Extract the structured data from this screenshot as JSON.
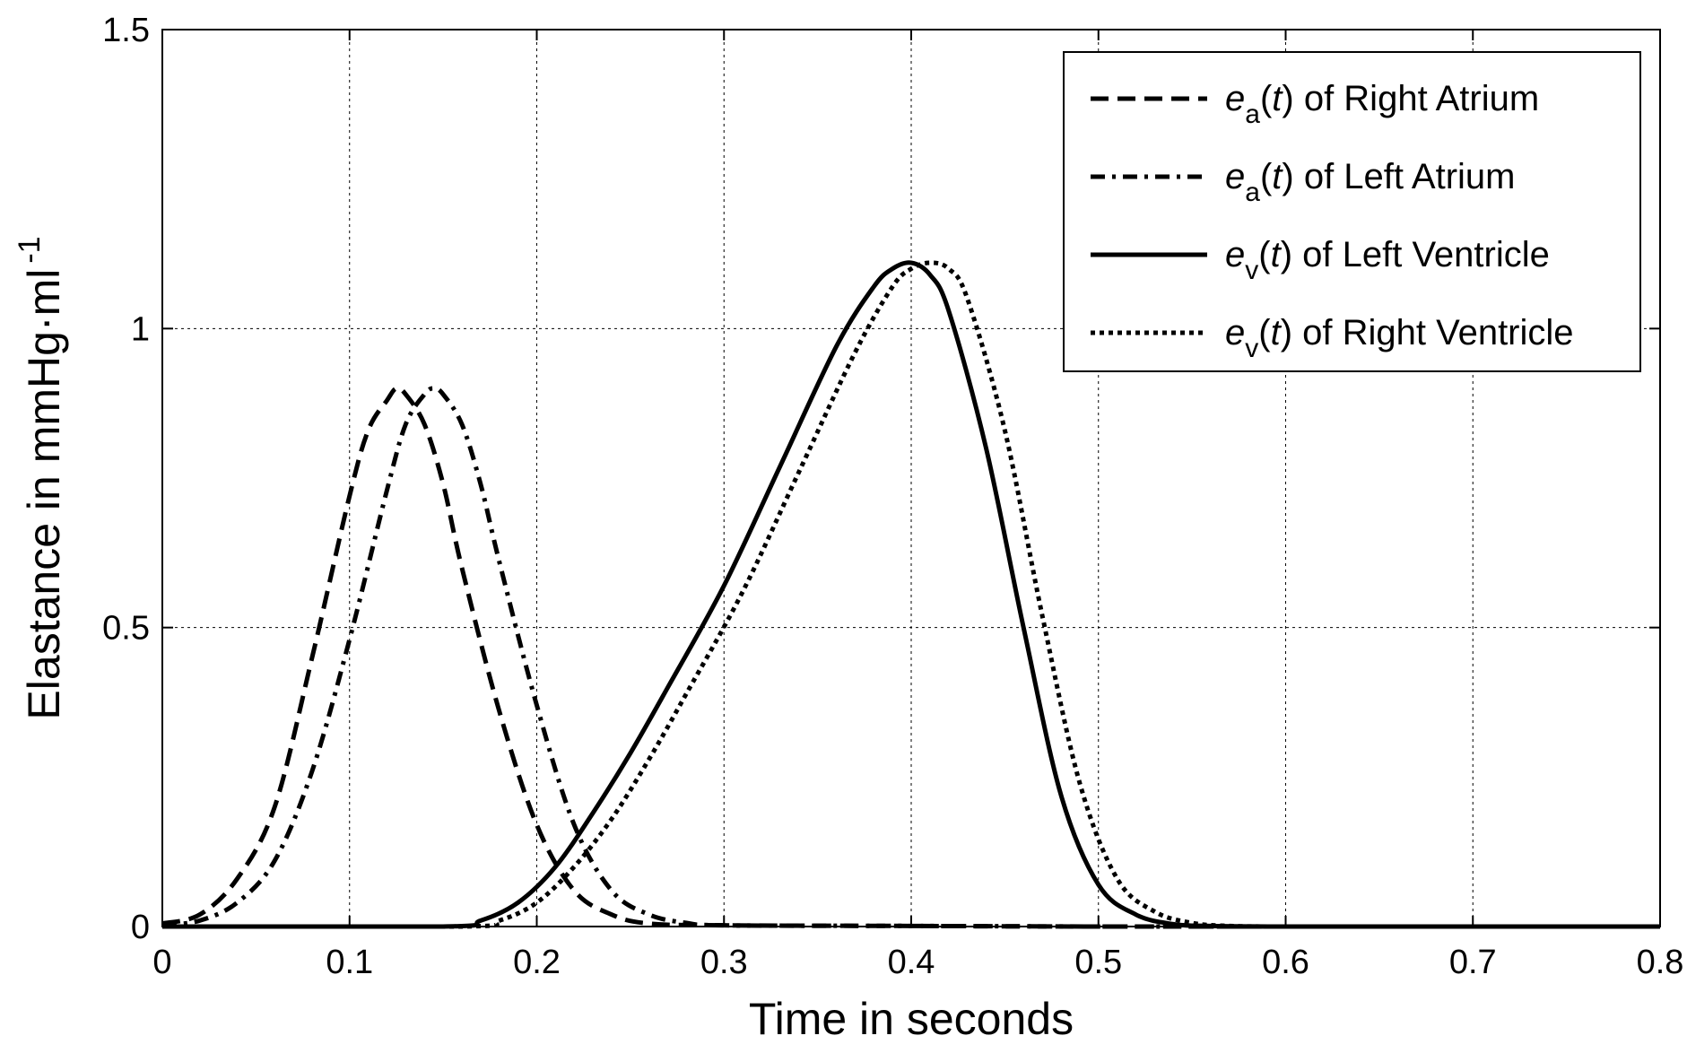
{
  "chart_data": {
    "type": "line",
    "title": "",
    "xlabel": "Time in seconds",
    "ylabel": {
      "main": "Elastance in mmHg·ml",
      "superscript": "-1"
    },
    "xlim": [
      0,
      0.8
    ],
    "ylim": [
      0,
      1.5
    ],
    "xticks": [
      "0",
      "0.1",
      "0.2",
      "0.3",
      "0.4",
      "0.5",
      "0.6",
      "0.7",
      "0.8"
    ],
    "yticks": [
      "0",
      "0.5",
      "1",
      "1.5"
    ],
    "grid": true,
    "legend_position": "top-right",
    "line_color": "#000000",
    "series": [
      {
        "name": "e_a(t) of Right Atrium",
        "legend": {
          "symbol": "e",
          "subscript": "a",
          "arg": "t",
          "suffix": " of Right Atrium"
        },
        "style": "dashed",
        "x": [
          0,
          0.02,
          0.04,
          0.06,
          0.08,
          0.1,
          0.11,
          0.12,
          0.125,
          0.13,
          0.14,
          0.15,
          0.16,
          0.18,
          0.2,
          0.22,
          0.24,
          0.26,
          0.3,
          0.4,
          0.5,
          0.6,
          0.7,
          0.8
        ],
        "y": [
          0.005,
          0.02,
          0.08,
          0.2,
          0.45,
          0.72,
          0.83,
          0.88,
          0.9,
          0.89,
          0.84,
          0.74,
          0.6,
          0.36,
          0.17,
          0.06,
          0.02,
          0.005,
          0.002,
          0.001,
          0.0,
          0.0,
          0.0,
          0.0
        ]
      },
      {
        "name": "e_a(t) of Left Atrium",
        "legend": {
          "symbol": "e",
          "subscript": "a",
          "arg": "t",
          "suffix": " of Left Atrium"
        },
        "style": "dashdot",
        "x": [
          0,
          0.02,
          0.04,
          0.06,
          0.08,
          0.1,
          0.12,
          0.13,
          0.14,
          0.145,
          0.15,
          0.16,
          0.17,
          0.18,
          0.2,
          0.22,
          0.24,
          0.26,
          0.28,
          0.3,
          0.4,
          0.5,
          0.6,
          0.7,
          0.8
        ],
        "y": [
          0.002,
          0.01,
          0.04,
          0.11,
          0.26,
          0.48,
          0.73,
          0.84,
          0.89,
          0.9,
          0.89,
          0.84,
          0.74,
          0.61,
          0.37,
          0.17,
          0.06,
          0.02,
          0.006,
          0.002,
          0.001,
          0.0,
          0.0,
          0.0,
          0.0
        ]
      },
      {
        "name": "e_v(t) of Left Ventricle",
        "legend": {
          "symbol": "e",
          "subscript": "v",
          "arg": "t",
          "suffix": " of Left Ventricle"
        },
        "style": "solid",
        "x": [
          0,
          0.15,
          0.17,
          0.19,
          0.21,
          0.23,
          0.25,
          0.27,
          0.3,
          0.33,
          0.36,
          0.38,
          0.39,
          0.4,
          0.41,
          0.42,
          0.44,
          0.46,
          0.48,
          0.5,
          0.52,
          0.54,
          0.56,
          0.6,
          0.7,
          0.8
        ],
        "y": [
          0.0,
          0.0,
          0.01,
          0.04,
          0.1,
          0.19,
          0.29,
          0.4,
          0.57,
          0.77,
          0.97,
          1.07,
          1.1,
          1.11,
          1.09,
          1.03,
          0.8,
          0.5,
          0.22,
          0.07,
          0.02,
          0.004,
          0.001,
          0.0,
          0.0,
          0.0
        ]
      },
      {
        "name": "e_v(t) of Right Ventricle",
        "legend": {
          "symbol": "e",
          "subscript": "v",
          "arg": "t",
          "suffix": " of Right Ventricle"
        },
        "style": "dotted",
        "x": [
          0,
          0.16,
          0.18,
          0.2,
          0.22,
          0.24,
          0.26,
          0.28,
          0.31,
          0.34,
          0.37,
          0.39,
          0.4,
          0.41,
          0.42,
          0.43,
          0.45,
          0.47,
          0.49,
          0.51,
          0.53,
          0.55,
          0.57,
          0.6,
          0.7,
          0.8
        ],
        "y": [
          0.0,
          0.0,
          0.01,
          0.04,
          0.1,
          0.18,
          0.28,
          0.39,
          0.56,
          0.76,
          0.96,
          1.07,
          1.1,
          1.11,
          1.1,
          1.05,
          0.83,
          0.52,
          0.24,
          0.08,
          0.025,
          0.006,
          0.001,
          0.0,
          0.0,
          0.0
        ]
      }
    ]
  }
}
